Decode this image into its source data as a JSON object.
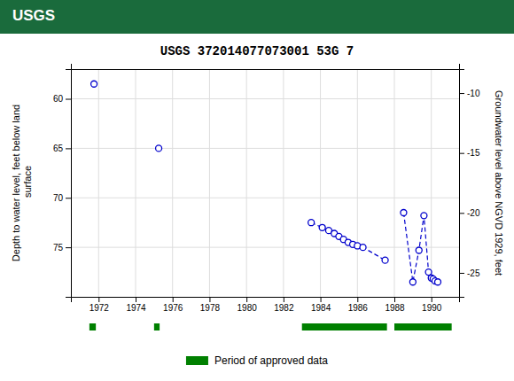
{
  "chart_data": {
    "type": "line",
    "title": "USGS 372014077073001 53G  7",
    "annotations": [
      {
        "text": "USGS",
        "color": "#1a6b3c"
      }
    ],
    "x_label": null,
    "y_label": "Depth to water level, feet below land\n surface",
    "y2_label": "Groundwater level above NGVD 1929, feet",
    "series": [
      {
        "name": "Depth to water level",
        "color": "#0000cc",
        "marker": "circle",
        "line_style": "dashed",
        "x": [
          1971.75,
          null,
          1975.25,
          null,
          1983.5,
          1984.1,
          1984.45,
          1984.75,
          1985.0,
          1985.25,
          1985.5,
          1985.75,
          1986.0,
          1986.3,
          1987.5,
          null,
          1988.5,
          1989.0,
          1989.33,
          1989.6,
          1989.85,
          1990.0,
          1990.1,
          1990.2,
          1990.35
        ],
        "values": [
          58.5,
          null,
          65.0,
          null,
          72.5,
          73.0,
          73.3,
          73.6,
          73.9,
          74.2,
          74.5,
          74.7,
          74.85,
          75.0,
          76.3,
          null,
          71.5,
          78.5,
          75.3,
          71.8,
          77.5,
          78.1,
          78.2,
          78.4,
          78.5
        ]
      }
    ],
    "approved_periods": {
      "name": "Period of approved data",
      "color": "#008000",
      "ranges": [
        [
          1971.5,
          1971.85
        ],
        [
          1975.0,
          1975.3
        ],
        [
          1983.0,
          1987.6
        ],
        [
          1988.0,
          1991.1
        ]
      ]
    },
    "xlim": [
      1970.5,
      1991.5
    ],
    "xticks": [
      1972,
      1974,
      1976,
      1978,
      1980,
      1982,
      1984,
      1986,
      1988,
      1990
    ],
    "ylim": [
      80,
      57
    ],
    "yticks": [
      60,
      65,
      70,
      75
    ],
    "y2lim": [
      -27,
      -8
    ],
    "y2ticks": [
      -10,
      -15,
      -20,
      -25
    ],
    "grid": true,
    "legend": "bottom"
  }
}
